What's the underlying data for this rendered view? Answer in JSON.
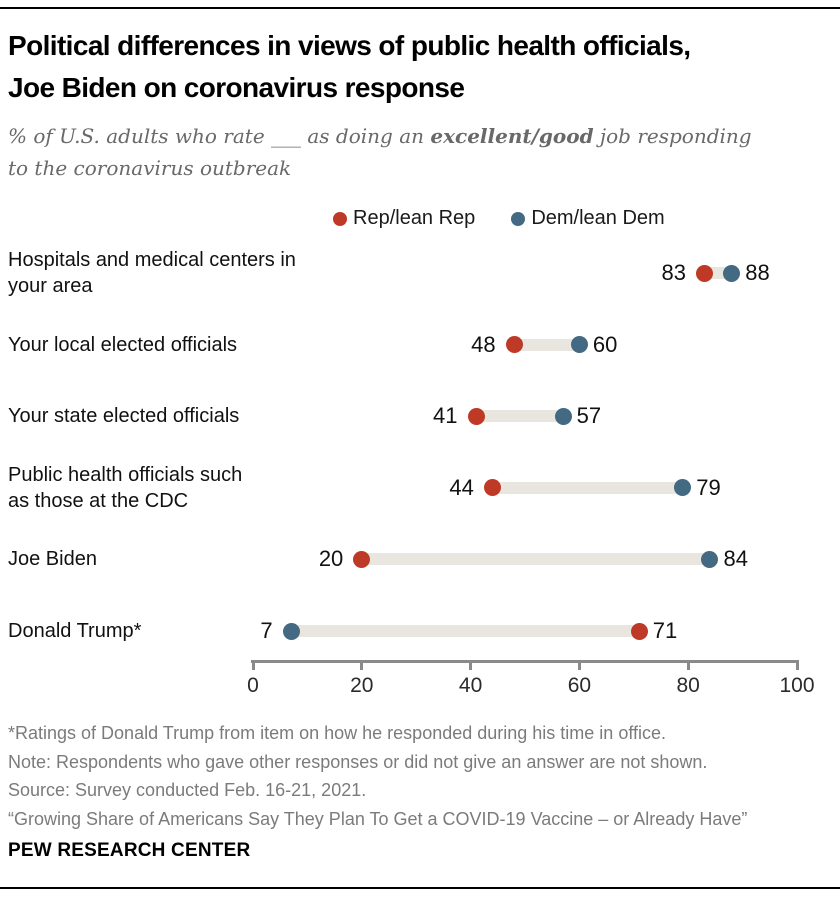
{
  "header": {
    "title_line1": "Political differences in views of public health officials,",
    "title_line2": "Joe Biden on coronavirus response",
    "subtitle_pre": "% of U.S. adults who rate ___ as doing an ",
    "subtitle_bold": "excellent/good",
    "subtitle_post": " job responding",
    "subtitle_line2": "to the coronavirus outbreak"
  },
  "legend": {
    "items": [
      {
        "label": "Rep/lean Rep",
        "color": "#bf3927"
      },
      {
        "label": "Dem/lean Dem",
        "color": "#436983"
      }
    ]
  },
  "chart_data": {
    "type": "scatter",
    "subtype": "dumbbell-dot-plot",
    "categories": [
      "Hospitals and medical centers in\nyour area",
      "Your local elected officials",
      "Your state elected officials",
      "Public health officials such\nas those at the CDC",
      "Joe Biden",
      "Donald Trump*"
    ],
    "series": [
      {
        "name": "Rep/lean Rep",
        "color": "#bf3927",
        "values": [
          83,
          48,
          41,
          44,
          20,
          71
        ]
      },
      {
        "name": "Dem/lean Dem",
        "color": "#436983",
        "values": [
          88,
          60,
          57,
          79,
          84,
          7
        ]
      }
    ],
    "xlim": [
      0,
      100
    ],
    "x_ticks": [
      0,
      20,
      40,
      60,
      80,
      100
    ],
    "grid": false,
    "legend_position": "top",
    "connector_color": "#e9e6df",
    "title": "Political differences in views of public health officials, Joe Biden on coronavirus response",
    "xlabel": "",
    "ylabel": ""
  },
  "footnotes": [
    "*Ratings of Donald Trump from item on how he responded during his time in office.",
    "Note: Respondents who gave other responses or did not give an answer are not shown.",
    "Source: Survey conducted Feb. 16-21, 2021.",
    "“Growing Share of Americans Say They Plan To Get a COVID-19 Vaccine – or Already Have”"
  ],
  "footer": {
    "brand": "PEW RESEARCH CENTER"
  }
}
